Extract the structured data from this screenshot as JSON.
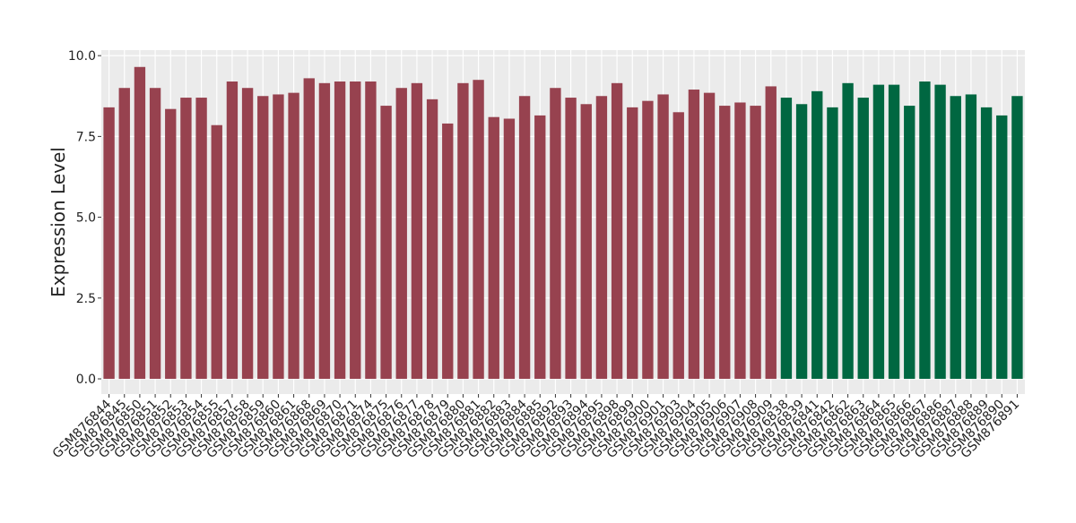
{
  "chart_data": {
    "type": "bar",
    "y_label": "Expression Level",
    "categories": [
      "GSM876844",
      "GSM876845",
      "GSM876850",
      "GSM876851",
      "GSM876852",
      "GSM876853",
      "GSM876854",
      "GSM876855",
      "GSM876857",
      "GSM876858",
      "GSM876859",
      "GSM876860",
      "GSM876861",
      "GSM876868",
      "GSM876869",
      "GSM876870",
      "GSM876871",
      "GSM876874",
      "GSM876875",
      "GSM876876",
      "GSM876877",
      "GSM876878",
      "GSM876879",
      "GSM876880",
      "GSM876881",
      "GSM876882",
      "GSM876883",
      "GSM876884",
      "GSM876885",
      "GSM876892",
      "GSM876893",
      "GSM876894",
      "GSM876895",
      "GSM876898",
      "GSM876899",
      "GSM876900",
      "GSM876901",
      "GSM876903",
      "GSM876904",
      "GSM876905",
      "GSM876906",
      "GSM876907",
      "GSM876908",
      "GSM876909",
      "GSM876838",
      "GSM876839",
      "GSM876841",
      "GSM876842",
      "GSM876862",
      "GSM876863",
      "GSM876864",
      "GSM876865",
      "GSM876866",
      "GSM876867",
      "GSM876886",
      "GSM876887",
      "GSM876888",
      "GSM876889",
      "GSM876890",
      "GSM876891"
    ],
    "values": [
      8.4,
      9.0,
      9.65,
      9.0,
      8.35,
      8.7,
      8.7,
      7.85,
      9.2,
      9.0,
      8.75,
      8.8,
      8.85,
      9.3,
      9.15,
      9.2,
      9.2,
      9.2,
      8.45,
      9.0,
      9.15,
      8.65,
      7.9,
      9.15,
      9.25,
      8.1,
      8.05,
      8.75,
      8.15,
      9.0,
      8.7,
      8.5,
      8.75,
      9.15,
      8.4,
      8.6,
      8.8,
      8.25,
      8.95,
      8.85,
      8.45,
      8.55,
      8.45,
      9.05,
      8.7,
      8.5,
      8.9,
      8.4,
      9.15,
      8.7,
      9.1,
      9.1,
      8.45,
      9.2,
      9.1,
      8.75,
      8.8,
      8.4,
      8.15,
      8.75
    ],
    "bar_colors": [
      "#97424f",
      "#97424f",
      "#97424f",
      "#97424f",
      "#97424f",
      "#97424f",
      "#97424f",
      "#97424f",
      "#97424f",
      "#97424f",
      "#97424f",
      "#97424f",
      "#97424f",
      "#97424f",
      "#97424f",
      "#97424f",
      "#97424f",
      "#97424f",
      "#97424f",
      "#97424f",
      "#97424f",
      "#97424f",
      "#97424f",
      "#97424f",
      "#97424f",
      "#97424f",
      "#97424f",
      "#97424f",
      "#97424f",
      "#97424f",
      "#97424f",
      "#97424f",
      "#97424f",
      "#97424f",
      "#97424f",
      "#97424f",
      "#97424f",
      "#97424f",
      "#97424f",
      "#97424f",
      "#97424f",
      "#97424f",
      "#97424f",
      "#97424f",
      "#006741",
      "#006741",
      "#006741",
      "#006741",
      "#006741",
      "#006741",
      "#006741",
      "#006741",
      "#006741",
      "#006741",
      "#006741",
      "#006741",
      "#006741",
      "#006741",
      "#006741",
      "#006741"
    ],
    "ylim": [
      -0.47,
      10.17
    ],
    "yticks": [
      {
        "value": 0,
        "label": "0.0"
      },
      {
        "value": 2.5,
        "label": "2.5"
      },
      {
        "value": 5,
        "label": "5.0"
      },
      {
        "value": 7.5,
        "label": "7.5"
      },
      {
        "value": 10,
        "label": "10.0"
      }
    ],
    "grid": true
  }
}
